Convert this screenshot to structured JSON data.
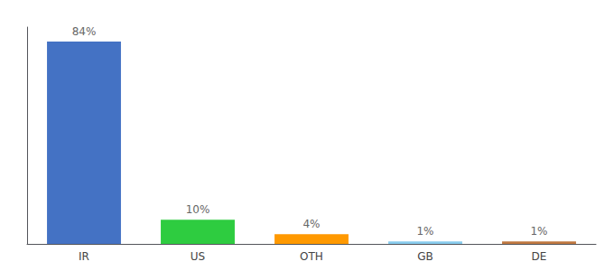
{
  "chart_data": {
    "type": "bar",
    "categories": [
      "IR",
      "US",
      "OTH",
      "GB",
      "DE"
    ],
    "values": [
      84,
      10,
      4,
      1,
      1
    ],
    "value_labels": [
      "84%",
      "10%",
      "4%",
      "1%",
      "1%"
    ],
    "colors": [
      "#4472c4",
      "#2ecc40",
      "#ff9900",
      "#88ccee",
      "#c07840"
    ],
    "ylim": [
      0,
      90
    ],
    "grid": false,
    "data_labels": true,
    "tick_labels": "x"
  }
}
